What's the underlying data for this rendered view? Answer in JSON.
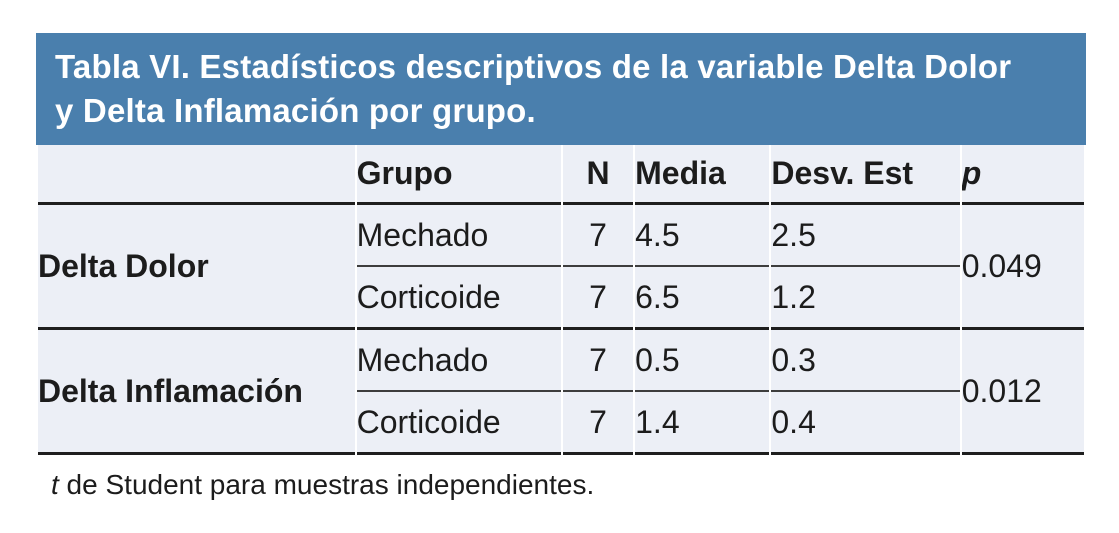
{
  "title": {
    "line1": "Tabla VI. Estadísticos descriptivos de la variable Delta Dolor",
    "line2": "y Delta Inflamación por grupo."
  },
  "table": {
    "columns": {
      "variable": "",
      "grupo": "Grupo",
      "n": "N",
      "media": "Media",
      "desv": "Desv. Est",
      "p": "p"
    },
    "sections": [
      {
        "label": "Delta Dolor",
        "rows": [
          {
            "grupo": "Mechado",
            "n": "7",
            "media": "4.5",
            "desv": "2.5"
          },
          {
            "grupo": "Corticoide",
            "n": "7",
            "media": "6.5",
            "desv": "1.2"
          }
        ],
        "p": "0.049"
      },
      {
        "label": "Delta Inflamación",
        "rows": [
          {
            "grupo": "Mechado",
            "n": "7",
            "media": "0.5",
            "desv": "0.3"
          },
          {
            "grupo": "Corticoide",
            "n": "7",
            "media": "1.4",
            "desv": "0.4"
          }
        ],
        "p": "0.012"
      }
    ]
  },
  "footnote": {
    "symbol": "t",
    "text": " de Student para muestras independientes."
  },
  "colors": {
    "header_bg": "#4A7FAD",
    "row_bg": "#ECEFF6",
    "line_dark": "#1e1e1e",
    "line_thin": "#3d3d3d",
    "title_text": "#FFFFFF",
    "body_text": "#1c1c1c"
  }
}
